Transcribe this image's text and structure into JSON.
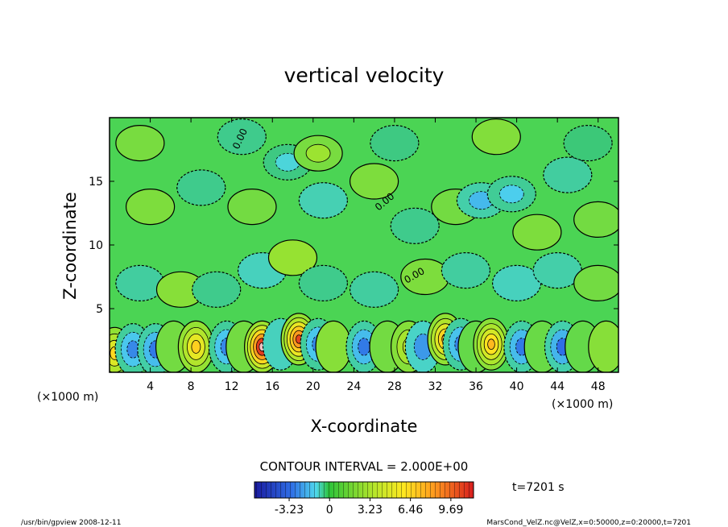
{
  "chart_data": {
    "type": "heatmap",
    "title": "vertical velocity",
    "xlabel": "X-coordinate",
    "ylabel": "Z-coordinate",
    "x_unit": "(×1000 m)",
    "x_unit_right": "(×1000 m)",
    "x_ticks": [
      4,
      8,
      12,
      16,
      20,
      24,
      28,
      32,
      36,
      40,
      44,
      48
    ],
    "y_ticks": [
      5,
      10,
      15
    ],
    "xlim": [
      0,
      50
    ],
    "ylim": [
      0,
      20
    ],
    "contour_interval_label": "CONTOUR INTERVAL = 2.000E+00",
    "contour_label": "0.00",
    "colorbar": {
      "ticks": [
        "-3.23",
        "0",
        "3.23",
        "6.46",
        "9.69"
      ],
      "tick_values": [
        -3.23,
        0,
        3.23,
        6.46,
        9.69
      ],
      "range": [
        -6.0,
        11.5
      ]
    },
    "time_label": "t=7201 s",
    "footer_left": "/usr/bin/gpview   2008-12-11",
    "footer_right": "MarsCond_VelZ.nc@VelZ,x=0:50000,z=0:20000,t=7201",
    "cells": [
      {
        "x": 0.5,
        "z": 1.5,
        "v": 5.5
      },
      {
        "x": 2.3,
        "z": 1.8,
        "v": -3.5
      },
      {
        "x": 4.5,
        "z": 1.8,
        "v": -3.8
      },
      {
        "x": 6.3,
        "z": 2.0,
        "v": 0.8
      },
      {
        "x": 8.5,
        "z": 2.0,
        "v": 5.8
      },
      {
        "x": 11.5,
        "z": 2.0,
        "v": -3.5
      },
      {
        "x": 13.2,
        "z": 2.0,
        "v": 0.8
      },
      {
        "x": 15.0,
        "z": 2.0,
        "v": 11.0
      },
      {
        "x": 16.8,
        "z": 2.2,
        "v": -1.5
      },
      {
        "x": 18.6,
        "z": 2.6,
        "v": 9.0
      },
      {
        "x": 20.5,
        "z": 2.2,
        "v": -3.5
      },
      {
        "x": 22.0,
        "z": 2.0,
        "v": 1.2
      },
      {
        "x": 25.0,
        "z": 2.0,
        "v": -3.8
      },
      {
        "x": 27.3,
        "z": 2.0,
        "v": 0.8
      },
      {
        "x": 29.4,
        "z": 2.0,
        "v": 3.5
      },
      {
        "x": 30.8,
        "z": 2.0,
        "v": -3.2
      },
      {
        "x": 33.0,
        "z": 2.6,
        "v": 7.0
      },
      {
        "x": 34.5,
        "z": 2.2,
        "v": -3.6
      },
      {
        "x": 36.0,
        "z": 2.0,
        "v": 0.5
      },
      {
        "x": 37.5,
        "z": 2.2,
        "v": 6.5
      },
      {
        "x": 40.5,
        "z": 2.0,
        "v": -3.8
      },
      {
        "x": 42.5,
        "z": 2.0,
        "v": 0.6
      },
      {
        "x": 44.5,
        "z": 2.0,
        "v": -4.0
      },
      {
        "x": 46.5,
        "z": 2.0,
        "v": 0.5
      },
      {
        "x": 48.8,
        "z": 2.0,
        "v": 1.2
      },
      {
        "x": 3.0,
        "z": 7.0,
        "v": -1.2
      },
      {
        "x": 7.0,
        "z": 6.5,
        "v": 1.2
      },
      {
        "x": 10.5,
        "z": 6.5,
        "v": -1.0
      },
      {
        "x": 15.0,
        "z": 8.0,
        "v": -1.5
      },
      {
        "x": 18.0,
        "z": 9.0,
        "v": 1.5
      },
      {
        "x": 21.0,
        "z": 7.0,
        "v": -1.0
      },
      {
        "x": 26.0,
        "z": 6.5,
        "v": -1.2
      },
      {
        "x": 31.0,
        "z": 7.5,
        "v": 1.0
      },
      {
        "x": 35.0,
        "z": 8.0,
        "v": -1.2
      },
      {
        "x": 40.0,
        "z": 7.0,
        "v": -1.5
      },
      {
        "x": 44.0,
        "z": 8.0,
        "v": -1.3
      },
      {
        "x": 48.0,
        "z": 7.0,
        "v": 0.8
      },
      {
        "x": 4.0,
        "z": 13.0,
        "v": 1.0
      },
      {
        "x": 9.0,
        "z": 14.5,
        "v": -1.0
      },
      {
        "x": 14.0,
        "z": 13.0,
        "v": 0.8
      },
      {
        "x": 17.5,
        "z": 16.5,
        "v": -1.8
      },
      {
        "x": 21.0,
        "z": 13.5,
        "v": -1.4
      },
      {
        "x": 26.0,
        "z": 15.0,
        "v": 1.0
      },
      {
        "x": 30.0,
        "z": 11.5,
        "v": -1.0
      },
      {
        "x": 34.0,
        "z": 13.0,
        "v": 0.8
      },
      {
        "x": 36.5,
        "z": 13.5,
        "v": -2.6
      },
      {
        "x": 39.5,
        "z": 14.0,
        "v": -2.2
      },
      {
        "x": 42.0,
        "z": 11.0,
        "v": 1.0
      },
      {
        "x": 45.0,
        "z": 15.5,
        "v": -1.2
      },
      {
        "x": 48.0,
        "z": 12.0,
        "v": 0.8
      },
      {
        "x": 3.0,
        "z": 18.0,
        "v": 0.9
      },
      {
        "x": 13.0,
        "z": 18.5,
        "v": -1.0
      },
      {
        "x": 20.5,
        "z": 17.2,
        "v": 1.8
      },
      {
        "x": 28.0,
        "z": 18.0,
        "v": -0.9
      },
      {
        "x": 38.0,
        "z": 18.5,
        "v": 1.1
      },
      {
        "x": 47.0,
        "z": 18.0,
        "v": -0.8
      }
    ]
  }
}
